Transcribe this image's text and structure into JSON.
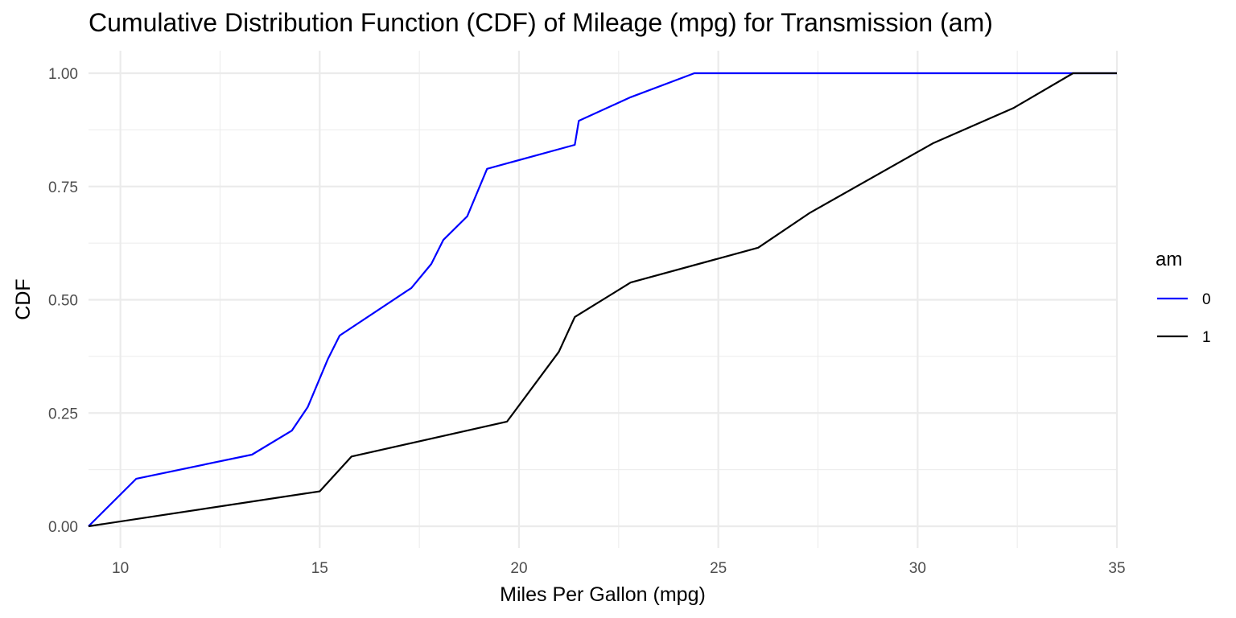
{
  "chart_data": {
    "type": "line",
    "title": "Cumulative Distribution Function (CDF) of Mileage (mpg) for Transmission (am)",
    "xlabel": "Miles Per Gallon (mpg)",
    "ylabel": "CDF",
    "xlim": [
      9.2,
      35.0
    ],
    "ylim": [
      0,
      1
    ],
    "x_ticks": [
      10,
      15,
      20,
      25,
      30,
      35
    ],
    "x_tick_labels": [
      "10",
      "15",
      "20",
      "25",
      "30",
      "35"
    ],
    "y_ticks": [
      0,
      0.25,
      0.5,
      0.75,
      1.0
    ],
    "y_tick_labels": [
      "0.00",
      "0.25",
      "0.50",
      "0.75",
      "1.00"
    ],
    "grid": true,
    "legend": {
      "title": "am",
      "position": "right"
    },
    "series": [
      {
        "name": "0",
        "color": "#0000ff",
        "x": [
          9.2,
          10.4,
          13.3,
          14.3,
          14.7,
          15.2,
          15.5,
          17.3,
          17.8,
          18.1,
          18.7,
          19.2,
          21.4,
          21.5,
          22.8,
          24.4,
          35.0
        ],
        "y": [
          0,
          0.105,
          0.158,
          0.211,
          0.263,
          0.368,
          0.421,
          0.526,
          0.579,
          0.632,
          0.684,
          0.789,
          0.842,
          0.895,
          0.947,
          1.0,
          1.0
        ]
      },
      {
        "name": "1",
        "color": "#000000",
        "x": [
          9.2,
          15.0,
          15.8,
          19.7,
          21.0,
          21.4,
          22.8,
          26.0,
          27.3,
          30.4,
          32.4,
          33.9,
          35.0
        ],
        "y": [
          0,
          0.077,
          0.154,
          0.231,
          0.385,
          0.462,
          0.538,
          0.615,
          0.692,
          0.846,
          0.923,
          1.0,
          1.0
        ]
      }
    ]
  }
}
